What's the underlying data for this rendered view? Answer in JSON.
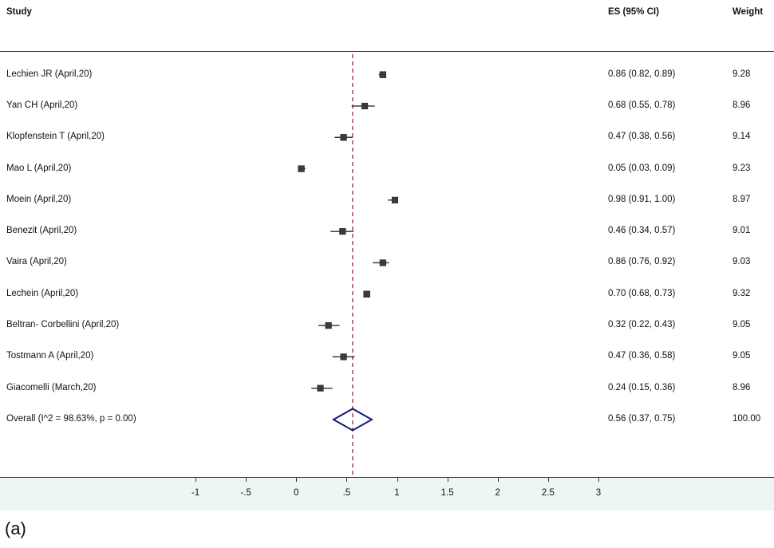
{
  "header": {
    "study": "Study",
    "es": "ES (95% CI)",
    "weight": "Weight"
  },
  "caption": "(a)",
  "chart_data": {
    "type": "forest",
    "title": "",
    "xlabel": "",
    "xlim": [
      -1,
      3
    ],
    "x_ticks": [
      -1,
      -0.5,
      0,
      0.5,
      1,
      1.5,
      2,
      2.5,
      3
    ],
    "x_tick_labels": [
      "-1",
      "-.5",
      "0",
      ".5",
      "1",
      "1.5",
      "2",
      "2.5",
      "3"
    ],
    "reference_line": 0.56,
    "grid": false,
    "studies": [
      {
        "name": "Lechien JR (April,20)",
        "es": 0.86,
        "ci_low": 0.82,
        "ci_high": 0.89,
        "weight": 9.28,
        "es_label": "0.86 (0.82, 0.89)",
        "weight_label": "9.28"
      },
      {
        "name": "Yan CH (April,20)",
        "es": 0.68,
        "ci_low": 0.55,
        "ci_high": 0.78,
        "weight": 8.96,
        "es_label": "0.68 (0.55, 0.78)",
        "weight_label": "8.96"
      },
      {
        "name": "Klopfenstein T (April,20)",
        "es": 0.47,
        "ci_low": 0.38,
        "ci_high": 0.56,
        "weight": 9.14,
        "es_label": "0.47 (0.38, 0.56)",
        "weight_label": "9.14"
      },
      {
        "name": "Mao L (April,20)",
        "es": 0.05,
        "ci_low": 0.03,
        "ci_high": 0.09,
        "weight": 9.23,
        "es_label": "0.05 (0.03, 0.09)",
        "weight_label": "9.23"
      },
      {
        "name": "Moein (April,20)",
        "es": 0.98,
        "ci_low": 0.91,
        "ci_high": 1.0,
        "weight": 8.97,
        "es_label": "0.98 (0.91, 1.00)",
        "weight_label": "8.97"
      },
      {
        "name": "Benezit (April,20)",
        "es": 0.46,
        "ci_low": 0.34,
        "ci_high": 0.57,
        "weight": 9.01,
        "es_label": "0.46 (0.34, 0.57)",
        "weight_label": "9.01"
      },
      {
        "name": "Vaira (April,20)",
        "es": 0.86,
        "ci_low": 0.76,
        "ci_high": 0.92,
        "weight": 9.03,
        "es_label": "0.86 (0.76, 0.92)",
        "weight_label": "9.03"
      },
      {
        "name": "Lechein (April,20)",
        "es": 0.7,
        "ci_low": 0.68,
        "ci_high": 0.73,
        "weight": 9.32,
        "es_label": "0.70 (0.68, 0.73)",
        "weight_label": "9.32"
      },
      {
        "name": "Beltran- Corbellini (April,20)",
        "es": 0.32,
        "ci_low": 0.22,
        "ci_high": 0.43,
        "weight": 9.05,
        "es_label": "0.32 (0.22, 0.43)",
        "weight_label": "9.05"
      },
      {
        "name": "Tostmann A (April,20)",
        "es": 0.47,
        "ci_low": 0.36,
        "ci_high": 0.58,
        "weight": 9.05,
        "es_label": "0.47 (0.36, 0.58)",
        "weight_label": "9.05"
      },
      {
        "name": "Giacomelli (March,20)",
        "es": 0.24,
        "ci_low": 0.15,
        "ci_high": 0.36,
        "weight": 8.96,
        "es_label": "0.24 (0.15, 0.36)",
        "weight_label": "8.96"
      }
    ],
    "overall": {
      "name": "Overall  (I^2 = 98.63%, p = 0.00)",
      "es": 0.56,
      "ci_low": 0.37,
      "ci_high": 0.75,
      "weight": 100.0,
      "es_label": "0.56 (0.37, 0.75)",
      "weight_label": "100.00"
    },
    "colors": {
      "marker": "#3a3a3a",
      "ci_line": "#2e2e2e",
      "reference_line": "#a03d52",
      "diamond": "#14197e",
      "axis": "#3a3a3a",
      "axis_band": "#eef6f4"
    },
    "legend_position": "none"
  }
}
